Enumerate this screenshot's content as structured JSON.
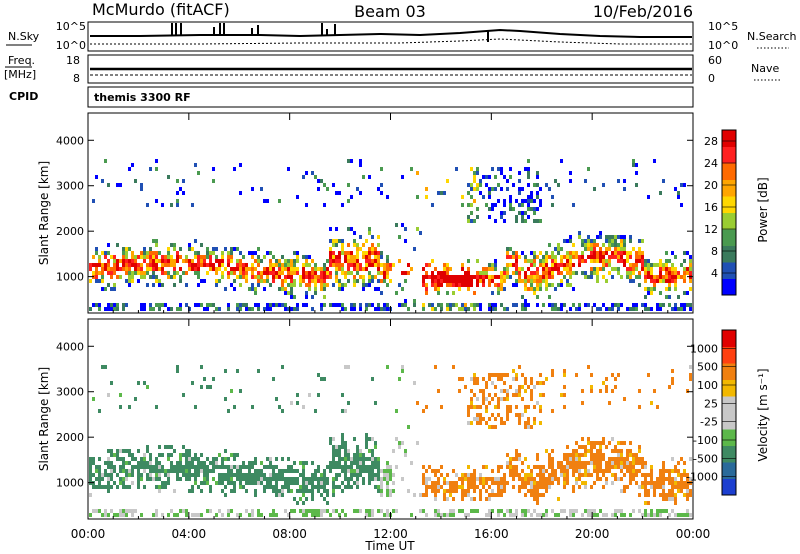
{
  "header": {
    "station": "McMurdo (fitACF)",
    "beam": "Beam 03",
    "date": "10/Feb/2016"
  },
  "noise_panel": {
    "left_label": "N.Sky",
    "left_ticks": [
      "10^5",
      "10^0"
    ],
    "right_label": "N.Search",
    "right_ticks": [
      "10^5",
      "10^0"
    ]
  },
  "freq_panel": {
    "left_label_1": "Freq.",
    "left_label_2": "[MHz]",
    "left_ticks": [
      "18",
      "8"
    ],
    "right_label": "Nave",
    "right_ticks": [
      "60",
      "0"
    ]
  },
  "cpid": {
    "label": "CPID",
    "value": "themis 3300 RF"
  },
  "colors": {
    "power_scale": [
      "#0000ff",
      "#2050b4",
      "#3a7a5c",
      "#4a9a50",
      "#9acd32",
      "#ffd700",
      "#ffa500",
      "#ff6a00",
      "#ff2020",
      "#e00000"
    ],
    "velocity_scale": [
      "#1c3fd0",
      "#2a6a9a",
      "#3e8a62",
      "#5cb84a",
      "#c8c8c8",
      "#c8c8c8",
      "#f2b800",
      "#f08010",
      "#ff4010",
      "#e00000"
    ],
    "scatter_power_main": "#3a8a5a",
    "scatter_power_hot": "#ff3a10",
    "scatter_velocity_neg": "#3e8a62",
    "scatter_velocity_pos": "#f08010"
  },
  "chart_data": [
    {
      "type": "heatmap",
      "name": "power",
      "xlabel": "",
      "ylabel": "Slant Range [km]",
      "y_ticks": [
        1000,
        2000,
        3000,
        4000
      ],
      "ylim": [
        200,
        4600
      ],
      "x_ticks": [
        "00:00",
        "04:00",
        "08:00",
        "12:00",
        "16:00",
        "20:00",
        "00:00"
      ],
      "xlim": [
        0,
        24
      ],
      "colorbar_label": "Power [dB]",
      "colorbar_ticks": [
        4,
        8,
        12,
        16,
        20,
        24,
        28
      ],
      "colorbar_range": [
        0,
        30
      ]
    },
    {
      "type": "heatmap",
      "name": "velocity",
      "xlabel": "Time UT",
      "ylabel": "Slant Range [km]",
      "y_ticks": [
        1000,
        2000,
        3000,
        4000
      ],
      "ylim": [
        200,
        4600
      ],
      "x_ticks": [
        "00:00",
        "04:00",
        "08:00",
        "12:00",
        "16:00",
        "20:00",
        "00:00"
      ],
      "xlim": [
        0,
        24
      ],
      "colorbar_label": "Velocity [m s⁻¹]",
      "colorbar_ticks": [
        "1000",
        "500",
        "100",
        "25",
        "-25",
        "-100",
        "-500",
        "-1000"
      ]
    }
  ]
}
